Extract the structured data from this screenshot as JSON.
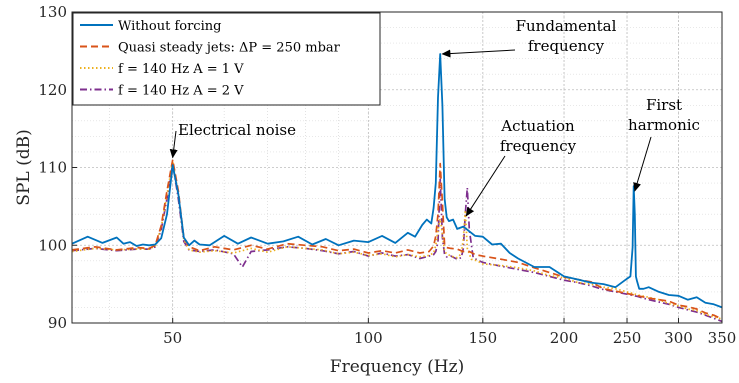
{
  "chart_data": {
    "type": "line",
    "xlabel": "Frequency (Hz)",
    "ylabel": "SPL (dB)",
    "xscale": "log",
    "xlim": [
      35,
      350
    ],
    "ylim": [
      90,
      130
    ],
    "xticks": [
      50,
      100,
      150,
      200,
      250,
      300,
      350
    ],
    "yticks": [
      90,
      100,
      110,
      120,
      130
    ],
    "grid": "on (major and minor, dotted)",
    "legend_position": "top-left",
    "series": [
      {
        "name": "Without forcing",
        "color": "#0072BD",
        "style": "solid",
        "x": [
          35,
          37,
          39,
          41,
          42,
          43,
          44,
          45,
          46,
          47,
          48,
          49,
          50,
          51,
          52,
          53,
          54,
          55,
          57,
          60,
          63,
          66,
          70,
          74,
          78,
          82,
          86,
          90,
          95,
          100,
          105,
          110,
          115,
          118,
          121,
          123,
          125,
          126,
          127,
          128,
          129,
          130,
          131,
          132,
          133,
          135,
          137,
          140,
          143,
          146,
          150,
          155,
          160,
          165,
          170,
          180,
          190,
          200,
          210,
          220,
          230,
          240,
          250,
          253,
          255,
          256,
          257,
          258,
          259,
          261,
          265,
          270,
          280,
          290,
          300,
          310,
          320,
          330,
          340,
          350
        ],
        "y": [
          100.2,
          101.1,
          100.3,
          101.0,
          100.2,
          100.4,
          99.9,
          100.1,
          100.0,
          100.1,
          100.9,
          104.0,
          110.3,
          106.6,
          101.0,
          100.0,
          100.6,
          100.1,
          100.0,
          101.2,
          100.2,
          101.0,
          100.2,
          100.5,
          101.1,
          100.1,
          100.8,
          100.0,
          100.6,
          100.4,
          101.2,
          100.3,
          101.6,
          101.1,
          102.6,
          103.3,
          102.8,
          104.8,
          108.0,
          119.0,
          124.6,
          118.0,
          106.0,
          103.6,
          103.1,
          103.3,
          102.1,
          102.4,
          101.8,
          101.2,
          101.1,
          100.1,
          100.2,
          99.0,
          98.3,
          97.2,
          97.2,
          96.0,
          95.6,
          95.2,
          95.0,
          94.6,
          95.7,
          96.0,
          99.7,
          107.6,
          104.0,
          96.0,
          95.4,
          94.4,
          94.4,
          94.6,
          94.0,
          93.6,
          93.5,
          93.0,
          93.3,
          92.6,
          92.4,
          92.0
        ]
      },
      {
        "name": "Quasi steady jets: ΔP = 250 mbar",
        "color": "#D95319",
        "style": "dashed",
        "x": [
          35,
          38,
          41,
          44,
          46,
          47,
          48,
          49,
          50,
          51,
          52,
          53,
          55,
          58,
          62,
          66,
          70,
          75,
          80,
          85,
          90,
          95,
          100,
          105,
          110,
          115,
          120,
          124,
          126,
          127,
          128,
          129,
          130,
          131,
          132,
          134,
          137,
          140,
          143,
          146,
          150,
          160,
          170,
          180,
          190,
          200,
          210,
          220,
          230,
          240,
          250,
          260,
          270,
          280,
          290,
          300,
          310,
          320,
          330,
          340,
          350
        ],
        "y": [
          99.4,
          99.8,
          99.4,
          99.7,
          99.6,
          100.0,
          102.5,
          107.0,
          111.0,
          107.0,
          101.0,
          99.8,
          99.3,
          99.8,
          99.4,
          100.0,
          99.5,
          100.2,
          100.0,
          99.8,
          99.3,
          99.5,
          99.0,
          99.3,
          99.0,
          99.4,
          99.0,
          99.2,
          99.9,
          101.2,
          104.0,
          110.5,
          105.5,
          100.0,
          99.7,
          99.6,
          99.5,
          99.2,
          99.2,
          98.8,
          98.6,
          98.2,
          97.8,
          97.1,
          96.5,
          95.9,
          95.6,
          95.3,
          94.4,
          94.1,
          93.8,
          93.5,
          93.2,
          93.0,
          92.8,
          92.3,
          92.1,
          91.8,
          91.3,
          91.0,
          90.5
        ]
      },
      {
        "name": "f = 140 Hz A = 1 V",
        "color": "#EDB120",
        "style": "dotted",
        "x": [
          35,
          38,
          41,
          44,
          46,
          47,
          48,
          49,
          50,
          51,
          52,
          53,
          55,
          58,
          62,
          66,
          70,
          75,
          80,
          85,
          90,
          95,
          100,
          105,
          110,
          115,
          120,
          124,
          126,
          127,
          128,
          129,
          130,
          131,
          132,
          134,
          137,
          139,
          140,
          141,
          142,
          144,
          147,
          150,
          160,
          170,
          180,
          190,
          200,
          210,
          220,
          230,
          240,
          250,
          260,
          270,
          280,
          290,
          300,
          310,
          320,
          330,
          340,
          350
        ],
        "y": [
          99.2,
          99.6,
          99.4,
          99.5,
          99.5,
          99.9,
          102.3,
          106.5,
          110.8,
          106.5,
          100.7,
          99.4,
          99.1,
          99.3,
          99.0,
          99.6,
          99.1,
          99.8,
          99.6,
          99.4,
          98.9,
          99.1,
          98.7,
          98.9,
          98.5,
          98.8,
          98.5,
          98.7,
          99.0,
          100.0,
          102.0,
          103.4,
          101.5,
          99.2,
          98.9,
          98.6,
          98.4,
          98.9,
          100.8,
          104.5,
          99.6,
          98.2,
          98.0,
          97.6,
          97.4,
          97.1,
          96.7,
          96.1,
          95.8,
          95.2,
          95.0,
          94.6,
          94.4,
          94.0,
          93.6,
          93.3,
          93.0,
          92.5,
          92.2,
          91.8,
          91.6,
          91.1,
          90.8,
          90.5
        ]
      },
      {
        "name": "f = 140 Hz A = 2 V",
        "color": "#7E2F8E",
        "style": "dashdot",
        "x": [
          35,
          38,
          41,
          44,
          46,
          47,
          48,
          49,
          50,
          51,
          52,
          53,
          55,
          58,
          62,
          64,
          66,
          70,
          75,
          80,
          85,
          90,
          95,
          100,
          105,
          110,
          115,
          120,
          124,
          126,
          127,
          128,
          129,
          130,
          131,
          132,
          134,
          137,
          139,
          140,
          141,
          142,
          143,
          145,
          148,
          150,
          160,
          170,
          180,
          190,
          200,
          210,
          220,
          230,
          240,
          250,
          260,
          270,
          280,
          290,
          300,
          310,
          320,
          330,
          340,
          350
        ],
        "y": [
          99.3,
          99.6,
          99.3,
          99.5,
          99.5,
          99.8,
          102.0,
          106.0,
          110.5,
          106.0,
          100.5,
          99.4,
          99.2,
          99.4,
          98.9,
          97.2,
          99.2,
          99.4,
          99.8,
          99.6,
          99.3,
          98.9,
          99.2,
          98.6,
          99.0,
          98.6,
          98.8,
          98.3,
          98.6,
          98.8,
          99.2,
          100.4,
          108.5,
          101.0,
          98.8,
          98.5,
          98.6,
          98.2,
          98.4,
          99.6,
          104.0,
          107.4,
          102.0,
          98.4,
          98.0,
          97.8,
          97.3,
          96.9,
          96.5,
          96.0,
          95.5,
          95.2,
          94.8,
          94.3,
          94.0,
          93.7,
          93.4,
          93.0,
          92.7,
          92.4,
          92.0,
          91.7,
          91.4,
          91.0,
          90.6,
          90.2
        ]
      }
    ],
    "annotations": [
      {
        "lines": [
          "Electrical noise"
        ],
        "target": [
          50,
          111.3
        ]
      },
      {
        "lines": [
          "Fundamental",
          "frequency"
        ],
        "target": [
          130,
          124.6
        ]
      },
      {
        "lines": [
          "Actuation",
          "frequency"
        ],
        "target": [
          141.5,
          103.8
        ]
      },
      {
        "lines": [
          "First",
          "harmonic"
        ],
        "target": [
          257,
          107.0
        ]
      }
    ]
  }
}
